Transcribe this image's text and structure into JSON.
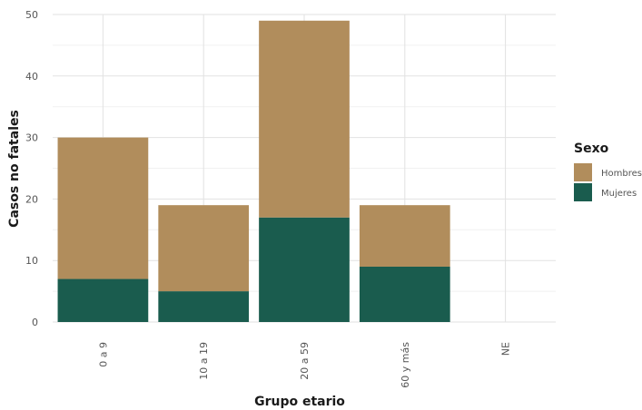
{
  "chart_data": {
    "type": "bar",
    "stacked": true,
    "categories": [
      "0 a 9",
      "10 a 19",
      "20 a 59",
      "60 y más",
      "NE"
    ],
    "series": [
      {
        "name": "Mujeres",
        "values": [
          7,
          5,
          17,
          9,
          0
        ],
        "color": "#1a5c4e"
      },
      {
        "name": "Hombres",
        "values": [
          23,
          14,
          32,
          10,
          0
        ],
        "color": "#b18d5c"
      }
    ],
    "xlabel": "Grupo etario",
    "ylabel": "Casos no fatales",
    "ylim": [
      0,
      50
    ],
    "yticks": [
      "0",
      "10",
      "20",
      "30",
      "40",
      "50"
    ],
    "grid": true,
    "legend": {
      "title": "Sexo",
      "position": "right",
      "entries": [
        "Hombres",
        "Mujeres"
      ]
    }
  }
}
